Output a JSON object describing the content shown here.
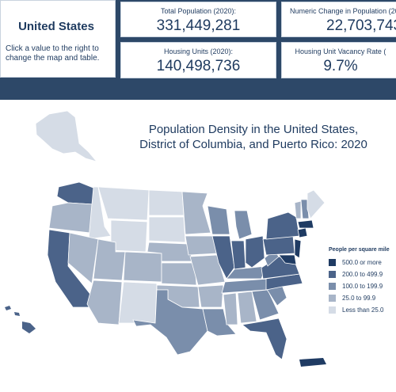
{
  "region": {
    "name": "United States",
    "instructions": "Click a value to the right to change the map and table."
  },
  "stats": [
    {
      "label": "Total Population (2020):",
      "value": "331,449,281"
    },
    {
      "label": "Numeric Change in Population (20",
      "value": "22,703,743"
    },
    {
      "label": "Housing Units (2020):",
      "value": "140,498,736"
    },
    {
      "label": "Housing Unit Vacancy Rate (",
      "value": "9.7%"
    }
  ],
  "map": {
    "title_line1": "Population Density in the United States,",
    "title_line2": "District of Columbia, and Puerto Rico: 2020",
    "legend_title": "People per square mile",
    "legend": [
      {
        "label": "500.0 or more",
        "color": "#1f3b63"
      },
      {
        "label": "200.0 to 499.9",
        "color": "#4b6389"
      },
      {
        "label": "100.0 to 199.9",
        "color": "#7a8eab"
      },
      {
        "label": "25.0 to 99.9",
        "color": "#a8b5c8"
      },
      {
        "label": "Less than 25.0",
        "color": "#d5dce6"
      }
    ]
  },
  "colors": {
    "header_bg": "#2d4868",
    "text": "#1e3a5f"
  }
}
